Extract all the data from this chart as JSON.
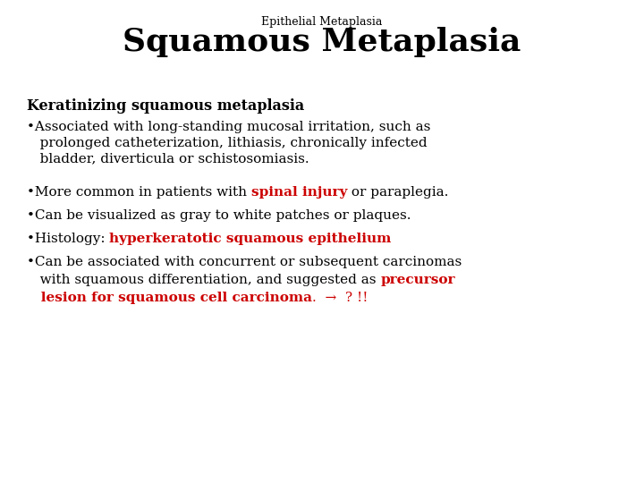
{
  "background_color": "#ffffff",
  "subtitle": "Epithelial Metaplasia",
  "title": "Squamous Metaplasia",
  "subtitle_fontsize": 9,
  "title_fontsize": 26,
  "heading": "Keratinizing squamous metaplasia",
  "heading_fontsize": 11.5,
  "body_fontsize": 11,
  "red_color": "#cc0000",
  "black_color": "#000000",
  "fig_width": 7.2,
  "fig_height": 5.4,
  "fig_dpi": 100
}
